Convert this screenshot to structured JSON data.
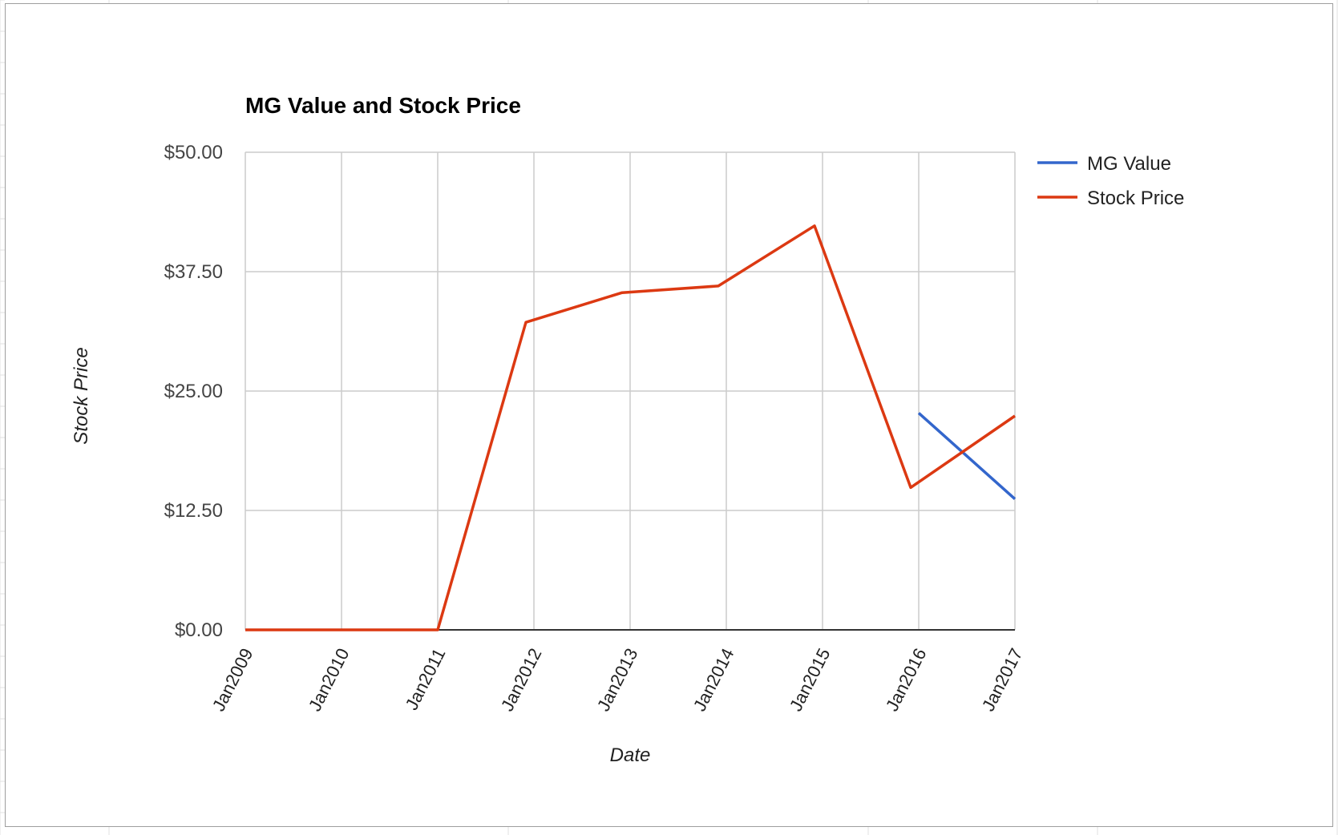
{
  "chart_data": {
    "type": "line",
    "title": "MG Value and Stock Price",
    "xlabel": "Date",
    "ylabel": "Stock Price",
    "ylim": [
      0,
      50
    ],
    "y_ticks": [
      "$0.00",
      "$12.50",
      "$25.00",
      "$37.50",
      "$50.00"
    ],
    "y_tick_values": [
      0,
      12.5,
      25,
      37.5,
      50
    ],
    "x_ticks": [
      "Jan2009",
      "Jan2010",
      "Jan2011",
      "Jan2012",
      "Jan2013",
      "Jan2014",
      "Jan2015",
      "Jan2016",
      "Jan2017"
    ],
    "xlim": [
      "2009-01",
      "2017-01"
    ],
    "grid": true,
    "legend_position": "right",
    "series": [
      {
        "name": "MG Value",
        "color": "#3366cc",
        "points": [
          {
            "x": "2016-01",
            "y": 22.7
          },
          {
            "x": "2017-01",
            "y": 13.7
          }
        ]
      },
      {
        "name": "Stock Price",
        "color": "#dc3912",
        "points": [
          {
            "x": "2009-01",
            "y": 0
          },
          {
            "x": "2010-01",
            "y": 0
          },
          {
            "x": "2011-01",
            "y": 0
          },
          {
            "x": "2011-12",
            "y": 32.2
          },
          {
            "x": "2012-12",
            "y": 35.3
          },
          {
            "x": "2013-12",
            "y": 36.0
          },
          {
            "x": "2014-12",
            "y": 42.3
          },
          {
            "x": "2015-12",
            "y": 14.9
          },
          {
            "x": "2017-01",
            "y": 22.4
          }
        ]
      }
    ]
  }
}
